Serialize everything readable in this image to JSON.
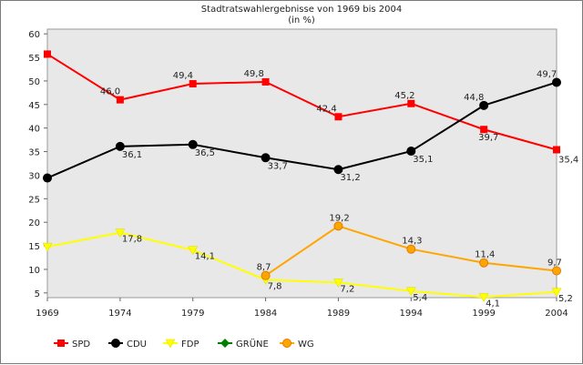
{
  "chart_data": {
    "type": "line",
    "title": "Stadtratswahlergebnisse von 1969 bis 2004",
    "subtitle": "(in %)",
    "x": [
      "1969",
      "1974",
      "1979",
      "1984",
      "1989",
      "1994",
      "1999",
      "2004"
    ],
    "ylim": [
      4,
      61
    ],
    "yticks": [
      5,
      10,
      15,
      20,
      25,
      30,
      35,
      40,
      45,
      50,
      55,
      60
    ],
    "grid": false,
    "legend_position": "bottom",
    "series": [
      {
        "name": "SPD",
        "color": "#ff0000",
        "marker": "square",
        "values": [
          55.7,
          46.0,
          49.4,
          49.8,
          42.4,
          45.2,
          39.7,
          35.4
        ],
        "labels": [
          "",
          "46,0",
          "49,4",
          "49,8",
          "42,4",
          "45,2",
          "39,7",
          "35,4"
        ]
      },
      {
        "name": "CDU",
        "color": "#000000",
        "marker": "circle",
        "values": [
          29.4,
          36.1,
          36.5,
          33.7,
          31.2,
          35.1,
          44.8,
          49.7
        ],
        "labels": [
          "",
          "36,1",
          "36,5",
          "33,7",
          "31,2",
          "35,1",
          "44,8",
          "49,7"
        ]
      },
      {
        "name": "FDP",
        "color": "#ffff00",
        "marker": "triangle",
        "values": [
          14.8,
          17.8,
          14.1,
          7.8,
          7.2,
          5.4,
          4.1,
          5.2
        ],
        "labels": [
          "",
          "17,8",
          "14,1",
          "7,8",
          "7,2",
          "5,4",
          "4,1",
          "5,2"
        ]
      },
      {
        "name": "GRÜNE",
        "color": "#008000",
        "marker": "diamond",
        "values": [
          null,
          null,
          null,
          null,
          null,
          null,
          null,
          null
        ],
        "labels": [
          "",
          "",
          "",
          "",
          "",
          "",
          "",
          ""
        ]
      },
      {
        "name": "WG",
        "color": "#ffa500",
        "marker": "circle",
        "values": [
          null,
          null,
          null,
          8.7,
          19.2,
          14.3,
          11.4,
          9.7
        ],
        "labels": [
          "",
          "",
          "",
          "8,7",
          "19,2",
          "14,3",
          "11,4",
          "9,7"
        ]
      }
    ]
  }
}
